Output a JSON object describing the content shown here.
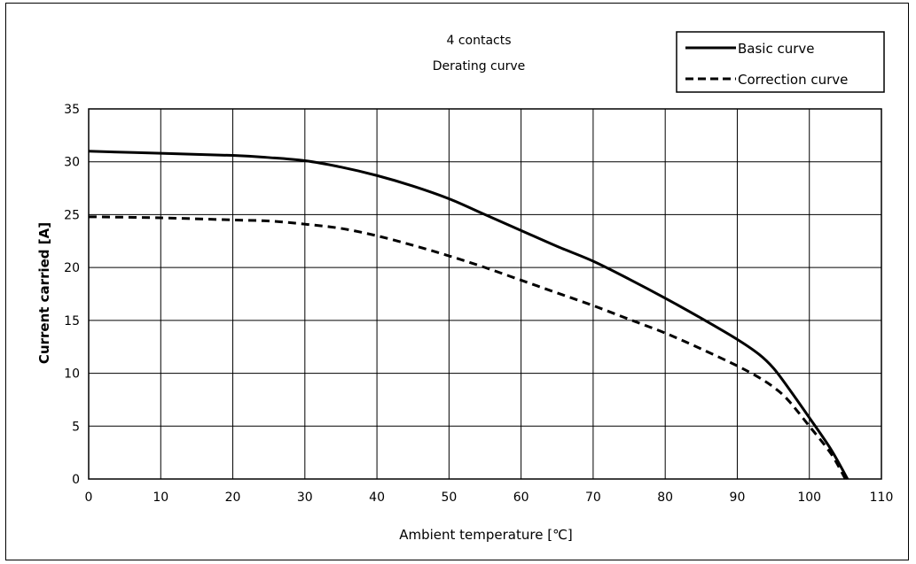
{
  "chart_data": {
    "type": "line",
    "title": "4 contacts",
    "subtitle": "Derating curve",
    "xlabel": "Ambient temperature [℃]",
    "ylabel": "Current carried [A]",
    "xlim": [
      0,
      110
    ],
    "ylim": [
      0,
      35
    ],
    "xticks": [
      "0",
      "10",
      "20",
      "30",
      "40",
      "50",
      "60",
      "70",
      "80",
      "90",
      "100",
      "110"
    ],
    "yticks": [
      "0",
      "5",
      "10",
      "15",
      "20",
      "25",
      "30",
      "35"
    ],
    "grid": true,
    "legend_position": "top-right",
    "series": [
      {
        "name": "Basic curve",
        "style": "solid",
        "color": "#000000",
        "x": [
          0,
          10,
          20,
          25,
          30,
          35,
          40,
          45,
          50,
          55,
          60,
          65,
          70,
          75,
          80,
          85,
          90,
          93,
          95,
          97,
          100,
          103,
          105.3
        ],
        "y": [
          31.0,
          30.8,
          30.6,
          30.4,
          30.1,
          29.5,
          28.7,
          27.7,
          26.5,
          25.0,
          23.5,
          22.0,
          20.6,
          18.9,
          17.1,
          15.2,
          13.2,
          11.8,
          10.5,
          8.7,
          5.8,
          2.8,
          0.0
        ]
      },
      {
        "name": "Correction curve",
        "style": "dashed",
        "color": "#000000",
        "x": [
          0,
          10,
          20,
          25,
          30,
          35,
          40,
          45,
          50,
          55,
          60,
          65,
          70,
          75,
          80,
          85,
          90,
          93,
          95,
          97,
          100,
          103,
          105
        ],
        "y": [
          24.8,
          24.7,
          24.5,
          24.4,
          24.1,
          23.7,
          23.0,
          22.1,
          21.1,
          20.0,
          18.8,
          17.6,
          16.4,
          15.1,
          13.8,
          12.3,
          10.7,
          9.6,
          8.7,
          7.5,
          5.0,
          2.4,
          0.0
        ]
      }
    ]
  }
}
